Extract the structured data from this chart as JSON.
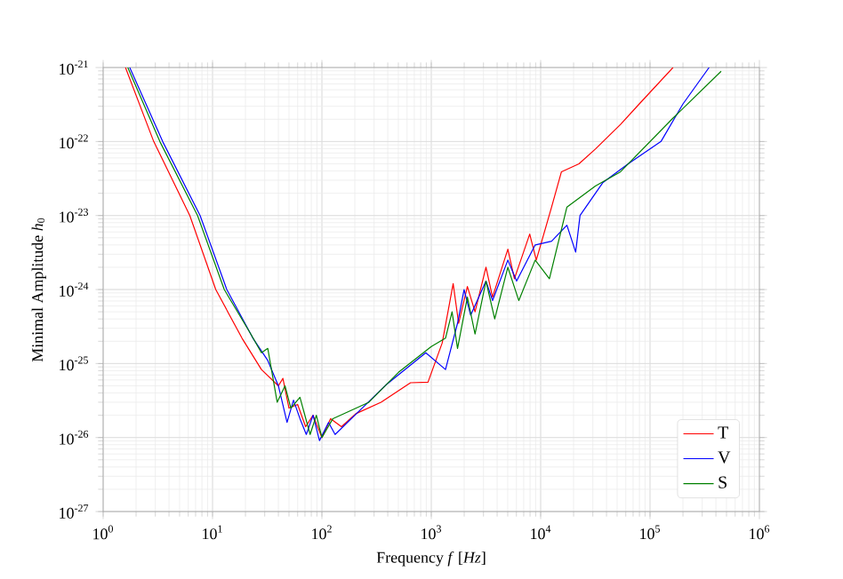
{
  "chart_data": {
    "type": "line",
    "xlabel": "Frequency *f* [*Hz*]",
    "ylabel": "Minimal Amplitude *h*$_{0}$",
    "log": "xy",
    "grid": true,
    "legend": "bottom right",
    "xlim": [
      1,
      1000000
    ],
    "ylim": [
      1e-27,
      1e-21
    ],
    "xticks": [
      {
        "value": 1,
        "label": "10$^{0}$"
      },
      {
        "value": 10,
        "label": "10$^{1}$"
      },
      {
        "value": 100,
        "label": "10$^{2}$"
      },
      {
        "value": 1000,
        "label": "10$^{3}$"
      },
      {
        "value": 10000,
        "label": "10$^{4}$"
      },
      {
        "value": 100000,
        "label": "10$^{5}$"
      },
      {
        "value": 1000000,
        "label": "10$^{6}$"
      }
    ],
    "yticks": [
      {
        "value": 1e-27,
        "label": "10$^{-27}$"
      },
      {
        "value": 1e-26,
        "label": "10$^{-26}$"
      },
      {
        "value": 1e-25,
        "label": "10$^{-25}$"
      },
      {
        "value": 1e-24,
        "label": "10$^{-24}$"
      },
      {
        "value": 1e-23,
        "label": "10$^{-23}$"
      },
      {
        "value": 1e-22,
        "label": "10$^{-22}$"
      },
      {
        "value": 1e-21,
        "label": "10$^{-21}$"
      }
    ],
    "series": [
      {
        "name": "T",
        "color": "#ff0000",
        "x": [
          1.6,
          2.9,
          6.2,
          10.7,
          18.6,
          28,
          40,
          44,
          50,
          60,
          71,
          83,
          100,
          120,
          151,
          204,
          347,
          646,
          933,
          1259,
          1585,
          1778,
          2138,
          2512,
          3162,
          3631,
          5012,
          5754,
          7943,
          9120,
          12589,
          15488,
          22387,
          31623,
          53703,
          79433,
          162181
        ],
        "values": [
          1e-21,
          1e-22,
          1e-23,
          1e-24,
          2.2e-25,
          8.3e-26,
          5e-26,
          6.3e-26,
          2.5e-26,
          2.8e-26,
          1.4e-26,
          2e-26,
          1e-26,
          1.8e-26,
          1.4e-26,
          2.1e-26,
          3e-26,
          5.5e-26,
          5.6e-26,
          1.9e-25,
          1.2e-24,
          3.5e-25,
          1.1e-24,
          5e-25,
          2e-24,
          7.9e-25,
          3.5e-24,
          1.4e-24,
          5.6e-24,
          2.5e-24,
          1.3e-23,
          3.9e-23,
          5e-23,
          7.9e-23,
          1.7e-22,
          3.2e-22,
          1e-21
        ]
      },
      {
        "name": "V",
        "color": "#0000ff",
        "x": [
          1.75,
          3.5,
          7.7,
          13.5,
          23.4,
          32,
          40,
          48,
          55,
          63,
          72,
          83,
          95,
          115,
          132,
          200,
          389,
          891,
          1349,
          1738,
          1995,
          2291,
          3162,
          3631,
          5012,
          6026,
          8913,
          12589,
          17378,
          20893,
          22909,
          37154,
          63096,
          125893,
          199526,
          346737
        ],
        "values": [
          1e-21,
          1e-22,
          1e-23,
          1e-24,
          2.2e-25,
          1.1e-25,
          5e-26,
          1.6e-26,
          3.2e-26,
          1.8e-26,
          1.1e-26,
          2e-26,
          9.1e-27,
          1.6e-26,
          1.1e-26,
          2e-26,
          5.2e-26,
          1.4e-25,
          8.3e-26,
          3.5e-25,
          1e-24,
          4.5e-25,
          1.3e-24,
          7.1e-25,
          2.5e-24,
          1.3e-24,
          4e-24,
          4.5e-24,
          7.4e-24,
          3.2e-24,
          1e-23,
          2.8e-23,
          5e-23,
          1e-22,
          3.2e-22,
          1e-21
        ]
      },
      {
        "name": "S",
        "color": "#008000",
        "x": [
          1.68,
          3.3,
          7.3,
          12.8,
          22.4,
          28,
          32,
          39,
          46,
          52,
          63,
          78,
          89,
          100,
          126,
          269,
          501,
          1000,
          1349,
          1549,
          1738,
          2138,
          2512,
          3162,
          3802,
          5012,
          6310,
          8913,
          12023,
          17378,
          31623,
          53703,
          158489,
          446684
        ],
        "values": [
          1e-21,
          1e-22,
          1e-23,
          1e-24,
          2.5e-25,
          1.4e-25,
          1.6e-25,
          3e-26,
          5e-26,
          2.5e-26,
          3.5e-26,
          1.1e-26,
          2e-26,
          1e-26,
          1.8e-26,
          3e-26,
          7.6e-26,
          1.7e-25,
          2.2e-25,
          5e-25,
          1.6e-25,
          7.9e-25,
          2.5e-25,
          1.3e-24,
          4e-25,
          2e-24,
          7.1e-25,
          2.5e-24,
          1.4e-24,
          1.3e-23,
          2.5e-23,
          3.9e-23,
          2e-22,
          8.9e-22
        ]
      }
    ]
  }
}
